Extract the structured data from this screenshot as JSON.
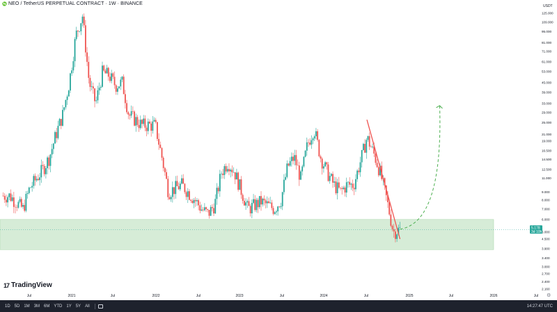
{
  "header": {
    "title": "NEO / TetherUS PERPETUAL CONTRACT · 1W · BINANCE"
  },
  "unit": "USDT",
  "brand": "TradingView",
  "timeframes": [
    "1D",
    "5D",
    "1M",
    "3M",
    "6M",
    "YTD",
    "1Y",
    "5Y",
    "All"
  ],
  "clock": "14:27:47 UTC",
  "chart_data": {
    "type": "candlestick",
    "symbol": "NEO / TetherUS PERPETUAL CONTRACT",
    "interval": "1W",
    "exchange": "BINANCE",
    "y_scale": "log",
    "ylim": [
      2.07,
      131
    ],
    "y_ticks": [
      "125.000",
      "109.000",
      "95.000",
      "81.000",
      "71.000",
      "61.000",
      "53.000",
      "45.000",
      "39.000",
      "33.000",
      "29.000",
      "25.000",
      "21.000",
      "19.000",
      "16.500",
      "14.500",
      "12.500",
      "11.000",
      "9.000",
      "8.000",
      "7.000",
      "6.000",
      "5.000",
      "4.500",
      "3.900",
      "3.400",
      "3.000",
      "2.700",
      "2.400",
      "2.160"
    ],
    "x_labels": [
      "Jul",
      "2021",
      "Jul",
      "2022",
      "Jul",
      "2023",
      "Jul",
      "2024",
      "Jul",
      "2025",
      "Jul",
      "2026",
      "Jul"
    ],
    "x_range": [
      "2020-04",
      "2026-12"
    ],
    "current_price": "5.178",
    "countdown": "3d 10h",
    "colors": {
      "up": "#26a69a",
      "down": "#ef5350",
      "trendline": "#ef5350",
      "projection": "#4caf50",
      "zone": "#c8e6c9"
    },
    "support_zone": {
      "low": 3.85,
      "high": 6.0,
      "from": "2020-04",
      "to": "2025-10"
    },
    "trendline": {
      "from": {
        "t": "2024-12",
        "price": 26.0
      },
      "to": {
        "t": "2025-05",
        "price": 4.5
      }
    },
    "projection": {
      "from": {
        "t": "2025-05",
        "price": 5.2
      },
      "to": {
        "t": "2025-11",
        "price": 32.0
      }
    },
    "price_path": [
      {
        "t": "2020-06",
        "price": 8.5
      },
      {
        "t": "2020-08",
        "price": 7.0
      },
      {
        "t": "2020-09",
        "price": 9.5
      },
      {
        "t": "2020-11",
        "price": 12.5
      },
      {
        "t": "2020-12",
        "price": 15.0
      },
      {
        "t": "2021-01",
        "price": 21.0
      },
      {
        "t": "2021-02",
        "price": 28.0
      },
      {
        "t": "2021-03",
        "price": 45.0
      },
      {
        "t": "2021-04",
        "price": 90.0
      },
      {
        "t": "2021-05",
        "price": 120.0
      },
      {
        "t": "2021-06",
        "price": 45.0
      },
      {
        "t": "2021-07",
        "price": 33.0
      },
      {
        "t": "2021-08",
        "price": 52.0
      },
      {
        "t": "2021-09",
        "price": 50.0
      },
      {
        "t": "2021-10",
        "price": 43.0
      },
      {
        "t": "2021-11",
        "price": 45.0
      },
      {
        "t": "2021-12",
        "price": 28.0
      },
      {
        "t": "2022-02",
        "price": 24.0
      },
      {
        "t": "2022-04",
        "price": 24.0
      },
      {
        "t": "2022-05",
        "price": 15.0
      },
      {
        "t": "2022-06",
        "price": 9.0
      },
      {
        "t": "2022-08",
        "price": 10.0
      },
      {
        "t": "2022-10",
        "price": 8.0
      },
      {
        "t": "2022-11",
        "price": 7.0
      },
      {
        "t": "2022-12",
        "price": 6.5
      },
      {
        "t": "2023-01",
        "price": 7.5
      },
      {
        "t": "2023-02",
        "price": 12.0
      },
      {
        "t": "2023-03",
        "price": 14.0
      },
      {
        "t": "2023-04",
        "price": 12.0
      },
      {
        "t": "2023-06",
        "price": 7.0
      },
      {
        "t": "2023-08",
        "price": 7.8
      },
      {
        "t": "2023-10",
        "price": 7.0
      },
      {
        "t": "2023-11",
        "price": 8.0
      },
      {
        "t": "2023-12",
        "price": 13.0
      },
      {
        "t": "2024-01",
        "price": 15.0
      },
      {
        "t": "2024-02",
        "price": 11.0
      },
      {
        "t": "2024-03",
        "price": 18.0
      },
      {
        "t": "2024-04",
        "price": 23.0
      },
      {
        "t": "2024-05",
        "price": 15.0
      },
      {
        "t": "2024-06",
        "price": 12.0
      },
      {
        "t": "2024-07",
        "price": 10.0
      },
      {
        "t": "2024-08",
        "price": 9.0
      },
      {
        "t": "2024-09",
        "price": 10.0
      },
      {
        "t": "2024-10",
        "price": 10.0
      },
      {
        "t": "2024-11",
        "price": 14.0
      },
      {
        "t": "2024-12",
        "price": 20.0
      },
      {
        "t": "2025-01",
        "price": 16.0
      },
      {
        "t": "2025-02",
        "price": 12.0
      },
      {
        "t": "2025-03",
        "price": 8.0
      },
      {
        "t": "2025-04",
        "price": 5.0
      },
      {
        "t": "2025-05",
        "price": 5.178
      }
    ]
  }
}
